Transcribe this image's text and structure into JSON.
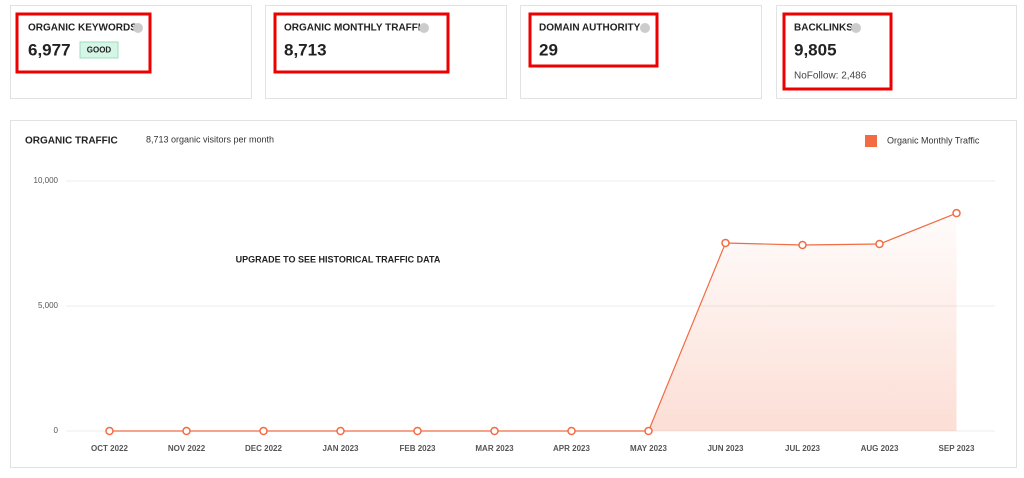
{
  "cards": [
    {
      "title": "ORGANIC KEYWORDS",
      "value": "6,977",
      "badge": "GOOD"
    },
    {
      "title": "ORGANIC MONTHLY TRAFFIC",
      "value": "8,713"
    },
    {
      "title": "DOMAIN AUTHORITY",
      "value": "29"
    },
    {
      "title": "BACKLINKS",
      "value": "9,805",
      "note": "NoFollow: 2,486"
    }
  ],
  "chart_data": {
    "type": "area",
    "title": "ORGANIC TRAFFIC",
    "subtitle": "8,713 organic visitors per month",
    "annotation": "UPGRADE TO SEE HISTORICAL TRAFFIC DATA",
    "categories": [
      "OCT 2022",
      "NOV 2022",
      "DEC 2022",
      "JAN 2023",
      "FEB 2023",
      "MAR 2023",
      "APR 2023",
      "MAY 2023",
      "JUN 2023",
      "JUL 2023",
      "AUG 2023",
      "SEP 2023"
    ],
    "series": [
      {
        "name": "Organic Monthly Traffic",
        "color": "#f26b43",
        "values": [
          0,
          0,
          0,
          0,
          0,
          0,
          0,
          0,
          7520,
          7440,
          7480,
          8713
        ]
      }
    ],
    "ylim": [
      0,
      10000
    ],
    "yticks": [
      0,
      {
        "value": 5000,
        "label": "5,000"
      },
      {
        "value": 10000,
        "label": "10,000"
      }
    ],
    "grid": true,
    "legend": "top-right"
  }
}
